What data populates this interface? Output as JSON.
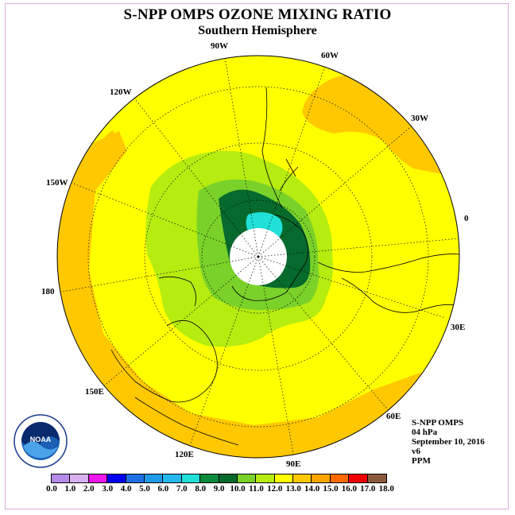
{
  "title": "S-NPP OMPS OZONE MIXING RATIO",
  "subtitle": "Southern Hemisphere",
  "longitude_labels": {
    "lon_90w": "90W",
    "lon_60w": "60W",
    "lon_30w": "30W",
    "lon_0": "0",
    "lon_30e": "30E",
    "lon_60e": "60E",
    "lon_90e": "90E",
    "lon_120e": "120E",
    "lon_150e": "150E",
    "lon_180": "180",
    "lon_150w": "150W",
    "lon_120w": "120W"
  },
  "info": {
    "instrument": "S-NPP OMPS",
    "level": "04 hPa",
    "date": "September 10, 2016",
    "version": "v6",
    "units": "PPM"
  },
  "logo": {
    "text": "NOAA",
    "ring_text": "NATIONAL OCEANIC AND ATMOSPHERIC ADMINISTRATION · U.S. DEPARTMENT OF COMMERCE"
  },
  "colorbar": {
    "colors": [
      "#b58be8",
      "#d7b0ef",
      "#ee18ee",
      "#0000f0",
      "#1e6fe6",
      "#1e9ae6",
      "#25b8ee",
      "#20e0d8",
      "#0a8a3c",
      "#066a2c",
      "#7ad12a",
      "#b6ec10",
      "#ffff00",
      "#ffc800",
      "#ffa500",
      "#ff6a00",
      "#f00000",
      "#8b5a3c"
    ],
    "ticks": [
      "0.0",
      "1.0",
      "2.0",
      "3.0",
      "4.0",
      "5.0",
      "6.0",
      "7.0",
      "8.0",
      "9.0",
      "10.0",
      "11.0",
      "12.0",
      "13.0",
      "14.0",
      "15.0",
      "16.0",
      "17.0",
      "18.0"
    ]
  },
  "field_colors": {
    "background_field": "#ffff00",
    "outer_field": "#ffc800",
    "mid_field": "#b6ec10",
    "inner_field": "#7ad12a",
    "core_field": "#066a2c",
    "cyan_field": "#20e0d8",
    "missing_pole": "#ffffff"
  }
}
